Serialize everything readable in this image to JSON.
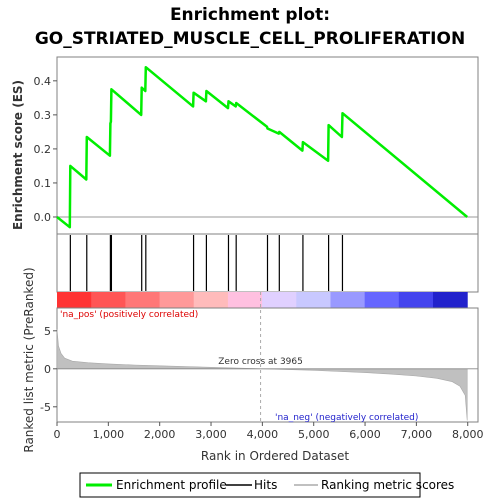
{
  "chart_data": {
    "title_line1": "Enrichment plot:",
    "title_line2": "GO_STRIATED_MUSCLE_CELL_PROLIFERATION",
    "type": "line",
    "xlabel": "Rank in Ordered Dataset",
    "ylabel_top": "Enrichment score (ES)",
    "ylabel_bottom": "Ranked list metric (PreRanked)",
    "xlim": [
      0,
      8200
    ],
    "es_ylim": [
      -0.05,
      0.47
    ],
    "metric_ylim": [
      -7,
      8
    ],
    "x_ticks": [
      0,
      1000,
      2000,
      3000,
      4000,
      5000,
      6000,
      7000,
      8000
    ],
    "x_tick_labels": [
      "0",
      "1,000",
      "2,000",
      "3,000",
      "4,000",
      "5,000",
      "6,000",
      "7,000",
      "8,000"
    ],
    "es_ticks": [
      0.0,
      0.1,
      0.2,
      0.3,
      0.4
    ],
    "es_tick_labels": [
      "0.0",
      "0.1",
      "0.2",
      "0.3",
      "0.4"
    ],
    "metric_ticks": [
      -5,
      0,
      5
    ],
    "metric_tick_labels": [
      "-5",
      "0",
      "5"
    ],
    "hits": [
      260,
      580,
      1040,
      1060,
      1650,
      1730,
      2660,
      2910,
      3340,
      3490,
      4100,
      4330,
      4790,
      5290,
      5560
    ],
    "es_series": {
      "name": "Enrichment profile",
      "color": "#00ee00",
      "x": [
        0,
        250,
        260,
        570,
        580,
        1030,
        1040,
        1050,
        1060,
        1640,
        1650,
        1720,
        1730,
        2650,
        2660,
        2900,
        2910,
        3330,
        3340,
        3480,
        3490,
        4090,
        4100,
        4320,
        4330,
        4780,
        4790,
        5280,
        5290,
        5550,
        5560,
        7990
      ],
      "y": [
        0.0,
        -0.03,
        0.15,
        0.11,
        0.235,
        0.18,
        0.275,
        0.28,
        0.375,
        0.3,
        0.38,
        0.37,
        0.44,
        0.325,
        0.365,
        0.34,
        0.37,
        0.32,
        0.34,
        0.325,
        0.335,
        0.265,
        0.26,
        0.245,
        0.25,
        0.195,
        0.22,
        0.165,
        0.27,
        0.235,
        0.305,
        0.0
      ]
    },
    "metric_series": {
      "name": "Ranking metric scores",
      "color": "#c0c0c0",
      "x": [
        0,
        30,
        80,
        150,
        300,
        600,
        1000,
        1500,
        2000,
        2500,
        3000,
        3500,
        3965,
        4500,
        5000,
        5500,
        6000,
        6500,
        7000,
        7400,
        7700,
        7850,
        7950,
        7990
      ],
      "y": [
        5.2,
        3.0,
        2.0,
        1.4,
        1.0,
        0.8,
        0.65,
        0.5,
        0.4,
        0.3,
        0.2,
        0.1,
        0.0,
        -0.1,
        -0.2,
        -0.35,
        -0.5,
        -0.7,
        -0.95,
        -1.25,
        -1.7,
        -2.3,
        -3.5,
        -6.8
      ]
    },
    "zero_cross_label": "Zero cross at 3965",
    "zero_cross_x": 3965,
    "pos_label": "'na_pos' (positively correlated)",
    "neg_label": "'na_neg' (negatively correlated)",
    "colorbar_colors": [
      "#ff3333",
      "#ff5555",
      "#ff7777",
      "#ff9999",
      "#ffbbbb",
      "#ffc0e0",
      "#e0d0ff",
      "#c8c8ff",
      "#9999ff",
      "#6666ff",
      "#4444ee",
      "#2222cc"
    ],
    "legend": {
      "position": "bottom",
      "items": [
        {
          "label": "Enrichment profile",
          "color": "#00ee00"
        },
        {
          "label": "Hits",
          "color": "#000000"
        },
        {
          "label": "Ranking metric scores",
          "color": "#c0c0c0"
        }
      ]
    },
    "grid": false
  }
}
